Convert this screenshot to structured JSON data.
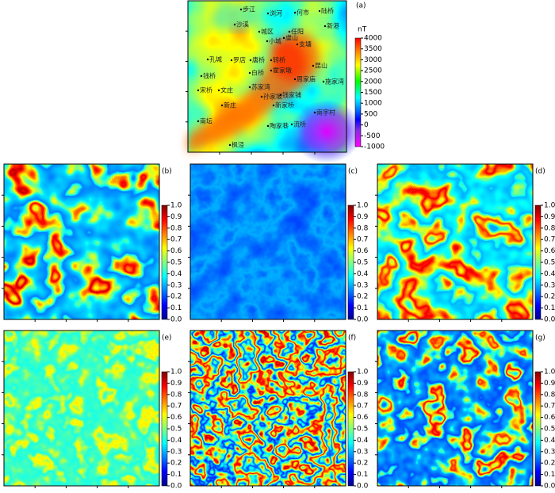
{
  "panel_a": {
    "label": "(a)",
    "unit": "nT",
    "colorbar_ticks": [
      "4000",
      "3500",
      "3000",
      "2500",
      "2000",
      "1500",
      "1000",
      "500",
      "0",
      "-500",
      "-1000"
    ],
    "places": [
      "步江",
      "浏河",
      "何市",
      "沙溪",
      "陆桥",
      "城区",
      "任阳",
      "虞山",
      "小城",
      "支塘",
      "新港",
      "孔城",
      "罗店",
      "唐桥",
      "转桥",
      "昆山",
      "钱桥",
      "白桥",
      "霍家墩",
      "周家庙",
      "施家湾",
      "苏家湾",
      "宋桥",
      "文庄",
      "孙家坂",
      "钱家铺",
      "新庄",
      "新家桥",
      "南坛",
      "陶家巷",
      "流桥",
      "南宇村",
      "枫泾"
    ]
  },
  "panels": [
    {
      "label": "(b)",
      "colorbar_ticks": [
        "1.0",
        "0.9",
        "0.8",
        "0.7",
        "0.6",
        "0.5",
        "0.4",
        "0.3",
        "0.2",
        "0.1",
        "0.0"
      ]
    },
    {
      "label": "(c)",
      "colorbar_ticks": [
        "1.0",
        "0.9",
        "0.8",
        "0.7",
        "0.6",
        "0.5",
        "0.4",
        "0.3",
        "0.2",
        "0.1",
        "0.0"
      ]
    },
    {
      "label": "(d)",
      "colorbar_ticks": [
        "1.0",
        "0.9",
        "0.8",
        "0.7",
        "0.6",
        "0.5",
        "0.4",
        "0.3",
        "0.2",
        "0.1",
        "0.0"
      ]
    },
    {
      "label": "(e)",
      "colorbar_ticks": [
        "1.0",
        "0.9",
        "0.8",
        "0.7",
        "0.6",
        "0.5",
        "0.4",
        "0.3",
        "0.2",
        "0.1",
        "0.0"
      ]
    },
    {
      "label": "(f)",
      "colorbar_ticks": [
        "1.0",
        "0.9",
        "0.8",
        "0.7",
        "0.6",
        "0.5",
        "0.4",
        "0.3",
        "0.2",
        "0.1",
        "0.0"
      ]
    },
    {
      "label": "(g)",
      "colorbar_ticks": [
        "1.0",
        "0.9",
        "0.8",
        "0.7",
        "0.6",
        "0.5",
        "0.4",
        "0.3",
        "0.2",
        "0.1",
        "0.0"
      ]
    }
  ]
}
